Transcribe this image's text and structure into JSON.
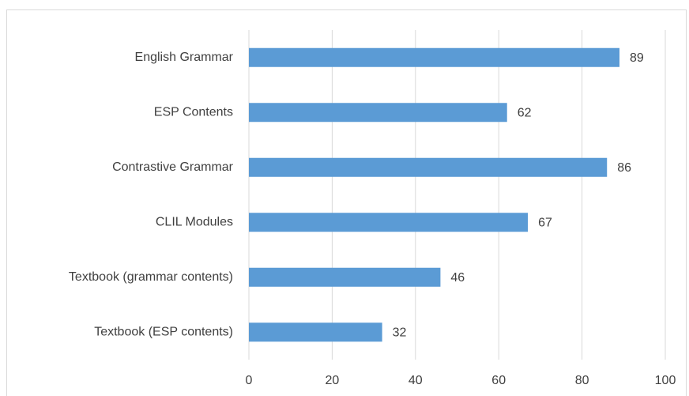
{
  "chart_data": {
    "type": "bar",
    "orientation": "horizontal",
    "categories": [
      "English Grammar",
      "ESP Contents",
      "Contrastive Grammar",
      "CLIL Modules",
      "Textbook (grammar contents)",
      "Textbook (ESP contents)"
    ],
    "values": [
      89,
      62,
      86,
      67,
      46,
      32
    ],
    "color": "#5b9bd5",
    "xlim": [
      0,
      100
    ],
    "xticks": [
      0,
      20,
      40,
      60,
      80,
      100
    ],
    "grid": true
  }
}
